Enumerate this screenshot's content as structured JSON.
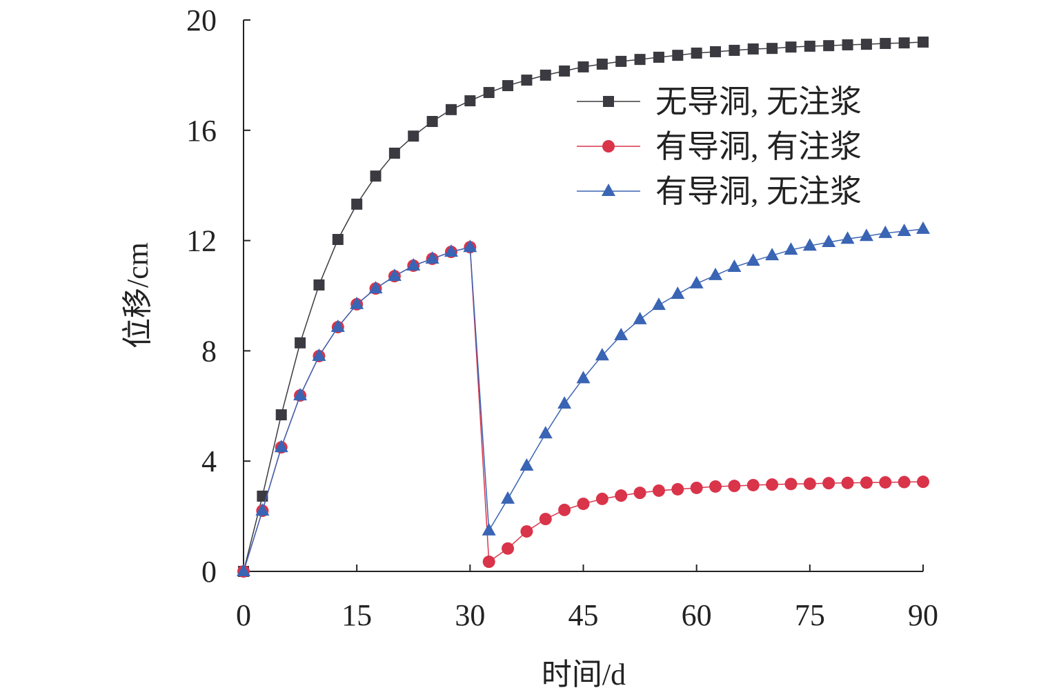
{
  "chart_data": {
    "type": "line",
    "title": "",
    "xlabel": "时间/d",
    "ylabel": "位移/cm",
    "xlim": [
      0,
      90
    ],
    "ylim": [
      0,
      20
    ],
    "xticks": [
      0,
      15,
      30,
      45,
      60,
      75,
      90
    ],
    "yticks": [
      0,
      4,
      8,
      12,
      16,
      20
    ],
    "grid": false,
    "legend_position": "top-right",
    "x": [
      0,
      2.5,
      5,
      7.5,
      10,
      12.5,
      15,
      17.5,
      20,
      22.5,
      25,
      27.5,
      30,
      32.5,
      35,
      37.5,
      40,
      42.5,
      45,
      47.5,
      50,
      52.5,
      55,
      57.5,
      60,
      62.5,
      65,
      67.5,
      70,
      72.5,
      75,
      77.5,
      80,
      82.5,
      85,
      87.5,
      90
    ],
    "series": [
      {
        "name": "无导洞, 无注浆",
        "marker": "square",
        "color": "#3a3a40",
        "values": [
          0,
          2.73,
          5.68,
          8.29,
          10.39,
          12.04,
          13.32,
          14.34,
          15.17,
          15.79,
          16.32,
          16.75,
          17.07,
          17.37,
          17.62,
          17.82,
          18.0,
          18.15,
          18.3,
          18.4,
          18.5,
          18.57,
          18.65,
          18.72,
          18.8,
          18.85,
          18.9,
          18.95,
          18.97,
          19.02,
          19.05,
          19.07,
          19.1,
          19.12,
          19.15,
          19.17,
          19.2
        ]
      },
      {
        "name": "有导洞, 有注浆",
        "marker": "circle",
        "color": "#d9344a",
        "values": [
          0,
          2.2,
          4.5,
          6.38,
          7.81,
          8.86,
          9.69,
          10.26,
          10.71,
          11.09,
          11.34,
          11.59,
          11.76,
          0.35,
          0.83,
          1.45,
          1.9,
          2.23,
          2.45,
          2.63,
          2.75,
          2.85,
          2.93,
          2.98,
          3.03,
          3.08,
          3.1,
          3.13,
          3.15,
          3.17,
          3.18,
          3.2,
          3.21,
          3.22,
          3.23,
          3.24,
          3.25
        ]
      },
      {
        "name": "有导洞, 无注浆",
        "marker": "triangle",
        "color": "#3a64b4",
        "values": [
          0,
          2.2,
          4.5,
          6.38,
          7.81,
          8.86,
          9.69,
          10.26,
          10.71,
          11.09,
          11.34,
          11.59,
          11.76,
          1.48,
          2.63,
          3.83,
          5.0,
          6.08,
          7.0,
          7.83,
          8.56,
          9.14,
          9.66,
          10.06,
          10.44,
          10.74,
          11.04,
          11.26,
          11.46,
          11.66,
          11.81,
          11.94,
          12.06,
          12.16,
          12.27,
          12.34,
          12.42
        ]
      }
    ]
  }
}
